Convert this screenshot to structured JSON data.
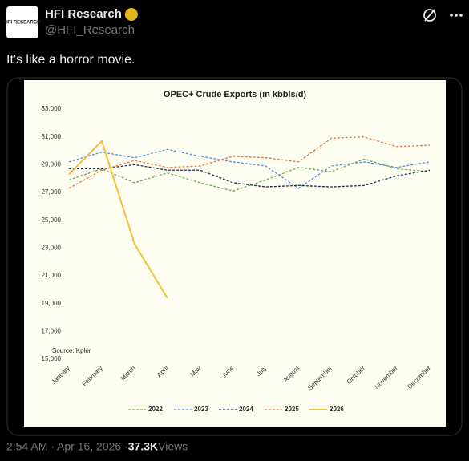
{
  "tweet": {
    "author": "HFI Research",
    "handle": "@HFI_Research",
    "avatar_text": "HFI RESEARCH",
    "text": "It's like a horror movie.",
    "time": "2:54 AM · Apr 16, 2026 · ",
    "views_count": "37.3K",
    "views_label": " Views"
  },
  "chart_data": {
    "type": "line",
    "title": "OPEC+ Crude Exports (in kbbls/d)",
    "source": "Source: Kpler",
    "categories": [
      "January",
      "February",
      "March",
      "April",
      "May",
      "June",
      "July",
      "August",
      "September",
      "October",
      "November",
      "December"
    ],
    "series": [
      {
        "name": "2022",
        "color": "#70ad47",
        "dashed": true,
        "values": [
          27900,
          28700,
          27700,
          28400,
          27700,
          27100,
          27900,
          28800,
          28500,
          29400,
          28700,
          28500
        ]
      },
      {
        "name": "2023",
        "color": "#5b8fd9",
        "dashed": true,
        "values": [
          29200,
          29900,
          29500,
          30100,
          29600,
          29200,
          28900,
          27300,
          28900,
          29200,
          28800,
          29200
        ]
      },
      {
        "name": "2024",
        "color": "#1f2d5c",
        "dashed": true,
        "values": [
          28700,
          28700,
          29000,
          28600,
          28600,
          27700,
          27400,
          27500,
          27400,
          27500,
          28200,
          28600
        ]
      },
      {
        "name": "2025",
        "color": "#e07b39",
        "dashed": true,
        "values": [
          27300,
          28600,
          29300,
          28800,
          28900,
          29600,
          29500,
          29200,
          30900,
          31000,
          30300,
          30400
        ]
      },
      {
        "name": "2026",
        "color": "#f4bf3a",
        "dashed": false,
        "values": [
          28300,
          30700,
          23300,
          19400,
          null,
          null,
          null,
          null,
          null,
          null,
          null,
          null
        ]
      }
    ],
    "ylim": [
      15000,
      33000
    ],
    "yticks": [
      {
        "value": 15000,
        "label": "15,000"
      },
      {
        "value": 17000,
        "label": "17,000"
      },
      {
        "value": 19000,
        "label": "19,000"
      },
      {
        "value": 21000,
        "label": "21,000"
      },
      {
        "value": 23000,
        "label": "23,000"
      },
      {
        "value": 25000,
        "label": "25,000"
      },
      {
        "value": 27000,
        "label": "27,000"
      },
      {
        "value": 29000,
        "label": "29,000"
      },
      {
        "value": 31000,
        "label": "31,000"
      },
      {
        "value": 33000,
        "label": "33,000"
      }
    ],
    "grid": false,
    "legend": "bottom"
  }
}
